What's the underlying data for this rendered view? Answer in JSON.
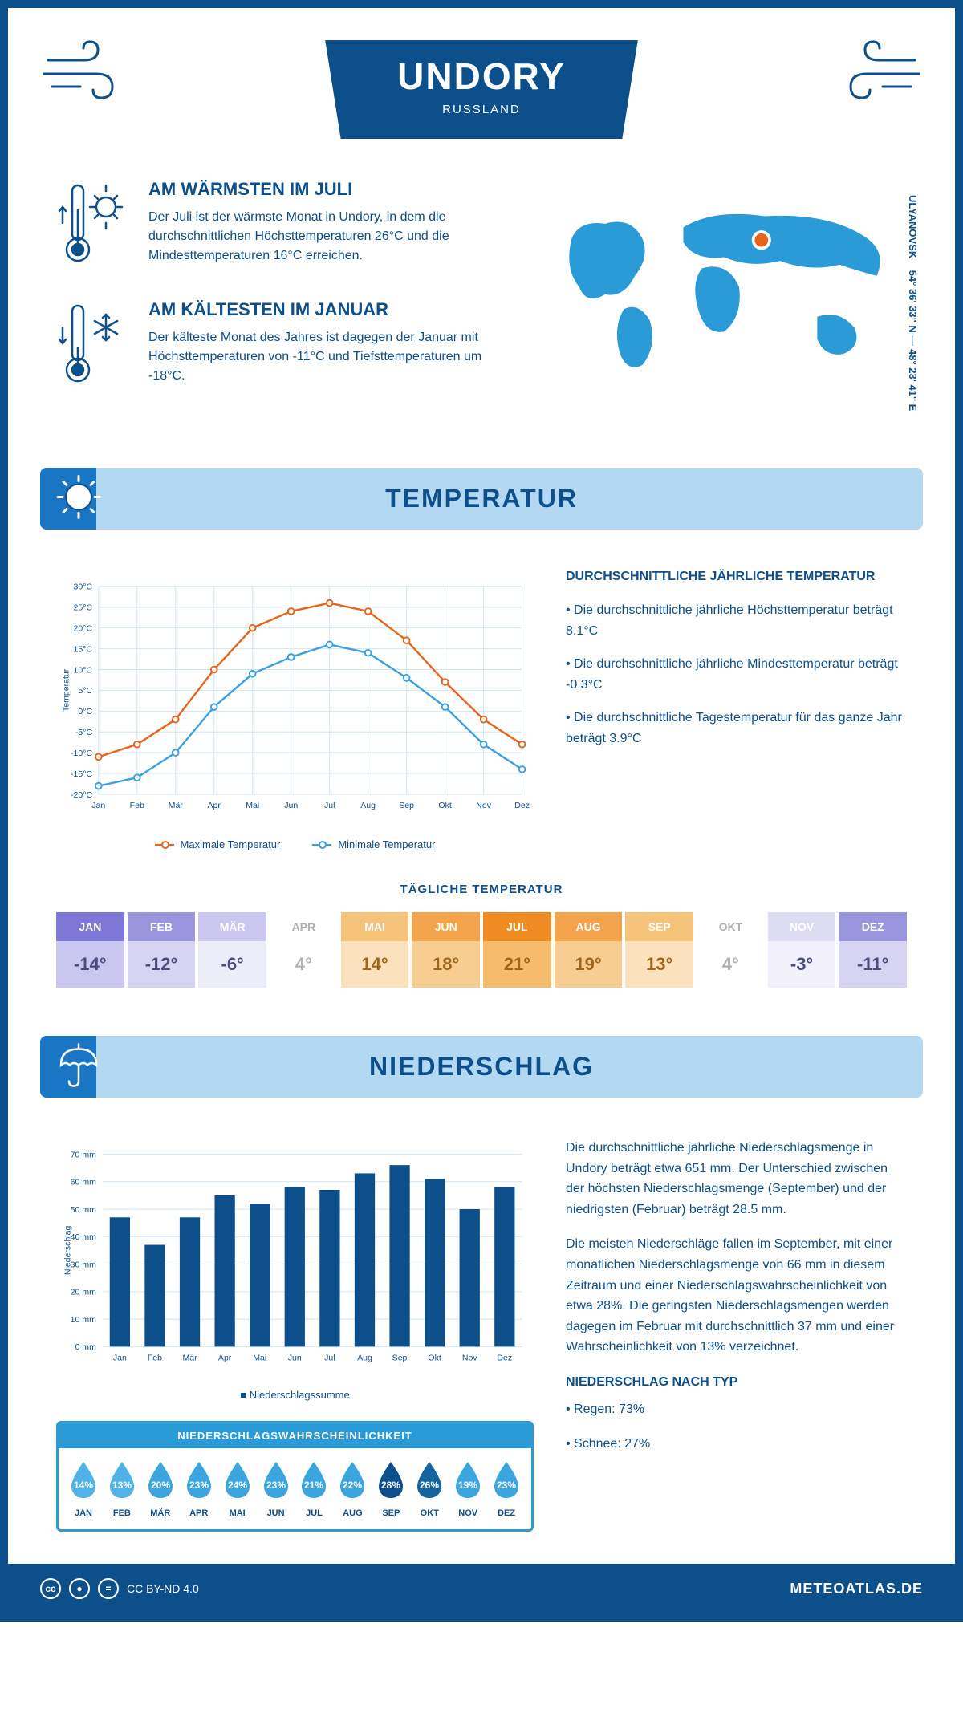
{
  "header": {
    "title": "UNDORY",
    "subtitle": "RUSSLAND"
  },
  "location": {
    "coords": "54° 36' 33'' N — 48° 23' 41'' E",
    "region": "ULYANOVSK"
  },
  "facts": {
    "warm": {
      "title": "AM WÄRMSTEN IM JULI",
      "text": "Der Juli ist der wärmste Monat in Undory, in dem die durchschnittlichen Höchsttemperaturen 26°C und die Mindesttemperaturen 16°C erreichen."
    },
    "cold": {
      "title": "AM KÄLTESTEN IM JANUAR",
      "text": "Der kälteste Monat des Jahres ist dagegen der Januar mit Höchsttemperaturen von -11°C und Tiefsttemperaturen um -18°C."
    }
  },
  "sections": {
    "temperature": "TEMPERATUR",
    "precipitation": "NIEDERSCHLAG"
  },
  "temperature_chart": {
    "months": [
      "Jan",
      "Feb",
      "Mär",
      "Apr",
      "Mai",
      "Jun",
      "Jul",
      "Aug",
      "Sep",
      "Okt",
      "Nov",
      "Dez"
    ],
    "max": [
      -11,
      -8,
      -2,
      10,
      20,
      24,
      26,
      24,
      17,
      7,
      -2,
      -8
    ],
    "min": [
      -18,
      -16,
      -10,
      1,
      9,
      13,
      16,
      14,
      8,
      1,
      -8,
      -14
    ],
    "max_color": "#e8641b",
    "min_color": "#3aa0e0",
    "grid_color": "#d0e4f2",
    "ylim": [
      -20,
      30
    ],
    "ystep": 5,
    "ylabel": "Temperatur",
    "legend_max": "Maximale Temperatur",
    "legend_min": "Minimale Temperatur"
  },
  "temperature_info": {
    "heading": "DURCHSCHNITTLICHE JÄHRLICHE TEMPERATUR",
    "p1": "• Die durchschnittliche jährliche Höchsttemperatur beträgt 8.1°C",
    "p2": "• Die durchschnittliche jährliche Mindesttemperatur beträgt -0.3°C",
    "p3": "• Die durchschnittliche Tagestemperatur für das ganze Jahr beträgt 3.9°C"
  },
  "daily_temp": {
    "title": "TÄGLICHE TEMPERATUR",
    "months": [
      "JAN",
      "FEB",
      "MÄR",
      "APR",
      "MAI",
      "JUN",
      "JUL",
      "AUG",
      "SEP",
      "OKT",
      "NOV",
      "DEZ"
    ],
    "values": [
      "-14°",
      "-12°",
      "-6°",
      "4°",
      "14°",
      "18°",
      "21°",
      "19°",
      "13°",
      "4°",
      "-3°",
      "-11°"
    ],
    "head_colors": [
      "#7d78d8",
      "#9996de",
      "#c9c7ef",
      "#ffffff",
      "#f5c27a",
      "#f2a34c",
      "#f08a22",
      "#f2a34c",
      "#f5c27a",
      "#ffffff",
      "#dedcf3",
      "#9996de"
    ],
    "head_text": [
      "#ffffff",
      "#ffffff",
      "#ffffff",
      "#b0b0b0",
      "#ffffff",
      "#ffffff",
      "#ffffff",
      "#ffffff",
      "#ffffff",
      "#b0b0b0",
      "#ffffff",
      "#ffffff"
    ],
    "val_colors": [
      "#c9c7ef",
      "#d6d4f2",
      "#edecf9",
      "#ffffff",
      "#fbe1bc",
      "#f8cd92",
      "#f6bc6d",
      "#f8cd92",
      "#fbe1bc",
      "#ffffff",
      "#f2f1fb",
      "#d6d4f2"
    ],
    "val_text": [
      "#4b4b7e",
      "#4b4b7e",
      "#4b4b7e",
      "#b0b0b0",
      "#a0651a",
      "#a0651a",
      "#a0651a",
      "#a0651a",
      "#a0651a",
      "#b0b0b0",
      "#4b4b7e",
      "#4b4b7e"
    ]
  },
  "precipitation_chart": {
    "months": [
      "Jan",
      "Feb",
      "Mär",
      "Apr",
      "Mai",
      "Jun",
      "Jul",
      "Aug",
      "Sep",
      "Okt",
      "Nov",
      "Dez"
    ],
    "values": [
      47,
      37,
      47,
      55,
      52,
      58,
      57,
      63,
      66,
      61,
      50,
      58
    ],
    "bar_color": "#0d4f8b",
    "grid_color": "#d0e4f2",
    "ylim": [
      0,
      70
    ],
    "ystep": 10,
    "ylabel": "Niederschlag",
    "legend": "Niederschlagssumme"
  },
  "precipitation_info": {
    "p1": "Die durchschnittliche jährliche Niederschlagsmenge in Undory beträgt etwa 651 mm. Der Unterschied zwischen der höchsten Niederschlagsmenge (September) und der niedrigsten (Februar) beträgt 28.5 mm.",
    "p2": "Die meisten Niederschläge fallen im September, mit einer monatlichen Niederschlagsmenge von 66 mm in diesem Zeitraum und einer Niederschlagswahrscheinlichkeit von etwa 28%. Die geringsten Niederschlagsmengen werden dagegen im Februar mit durchschnittlich 37 mm und einer Wahrscheinlichkeit von 13% verzeichnet.",
    "type_heading": "NIEDERSCHLAG NACH TYP",
    "rain": "• Regen: 73%",
    "snow": "• Schnee: 27%"
  },
  "probability": {
    "title": "NIEDERSCHLAGSWAHRSCHEINLICHKEIT",
    "months": [
      "JAN",
      "FEB",
      "MÄR",
      "APR",
      "MAI",
      "JUN",
      "JUL",
      "AUG",
      "SEP",
      "OKT",
      "NOV",
      "DEZ"
    ],
    "values": [
      "14%",
      "13%",
      "20%",
      "23%",
      "24%",
      "23%",
      "21%",
      "22%",
      "28%",
      "26%",
      "19%",
      "23%"
    ],
    "colors": [
      "#4fb3e8",
      "#4fb3e8",
      "#3ba5df",
      "#3ba5df",
      "#3ba5df",
      "#3ba5df",
      "#3ba5df",
      "#3ba5df",
      "#0d4f8b",
      "#13649f",
      "#3ba5df",
      "#3ba5df"
    ]
  },
  "footer": {
    "license": "CC BY-ND 4.0",
    "site": "METEOATLAS.DE"
  }
}
